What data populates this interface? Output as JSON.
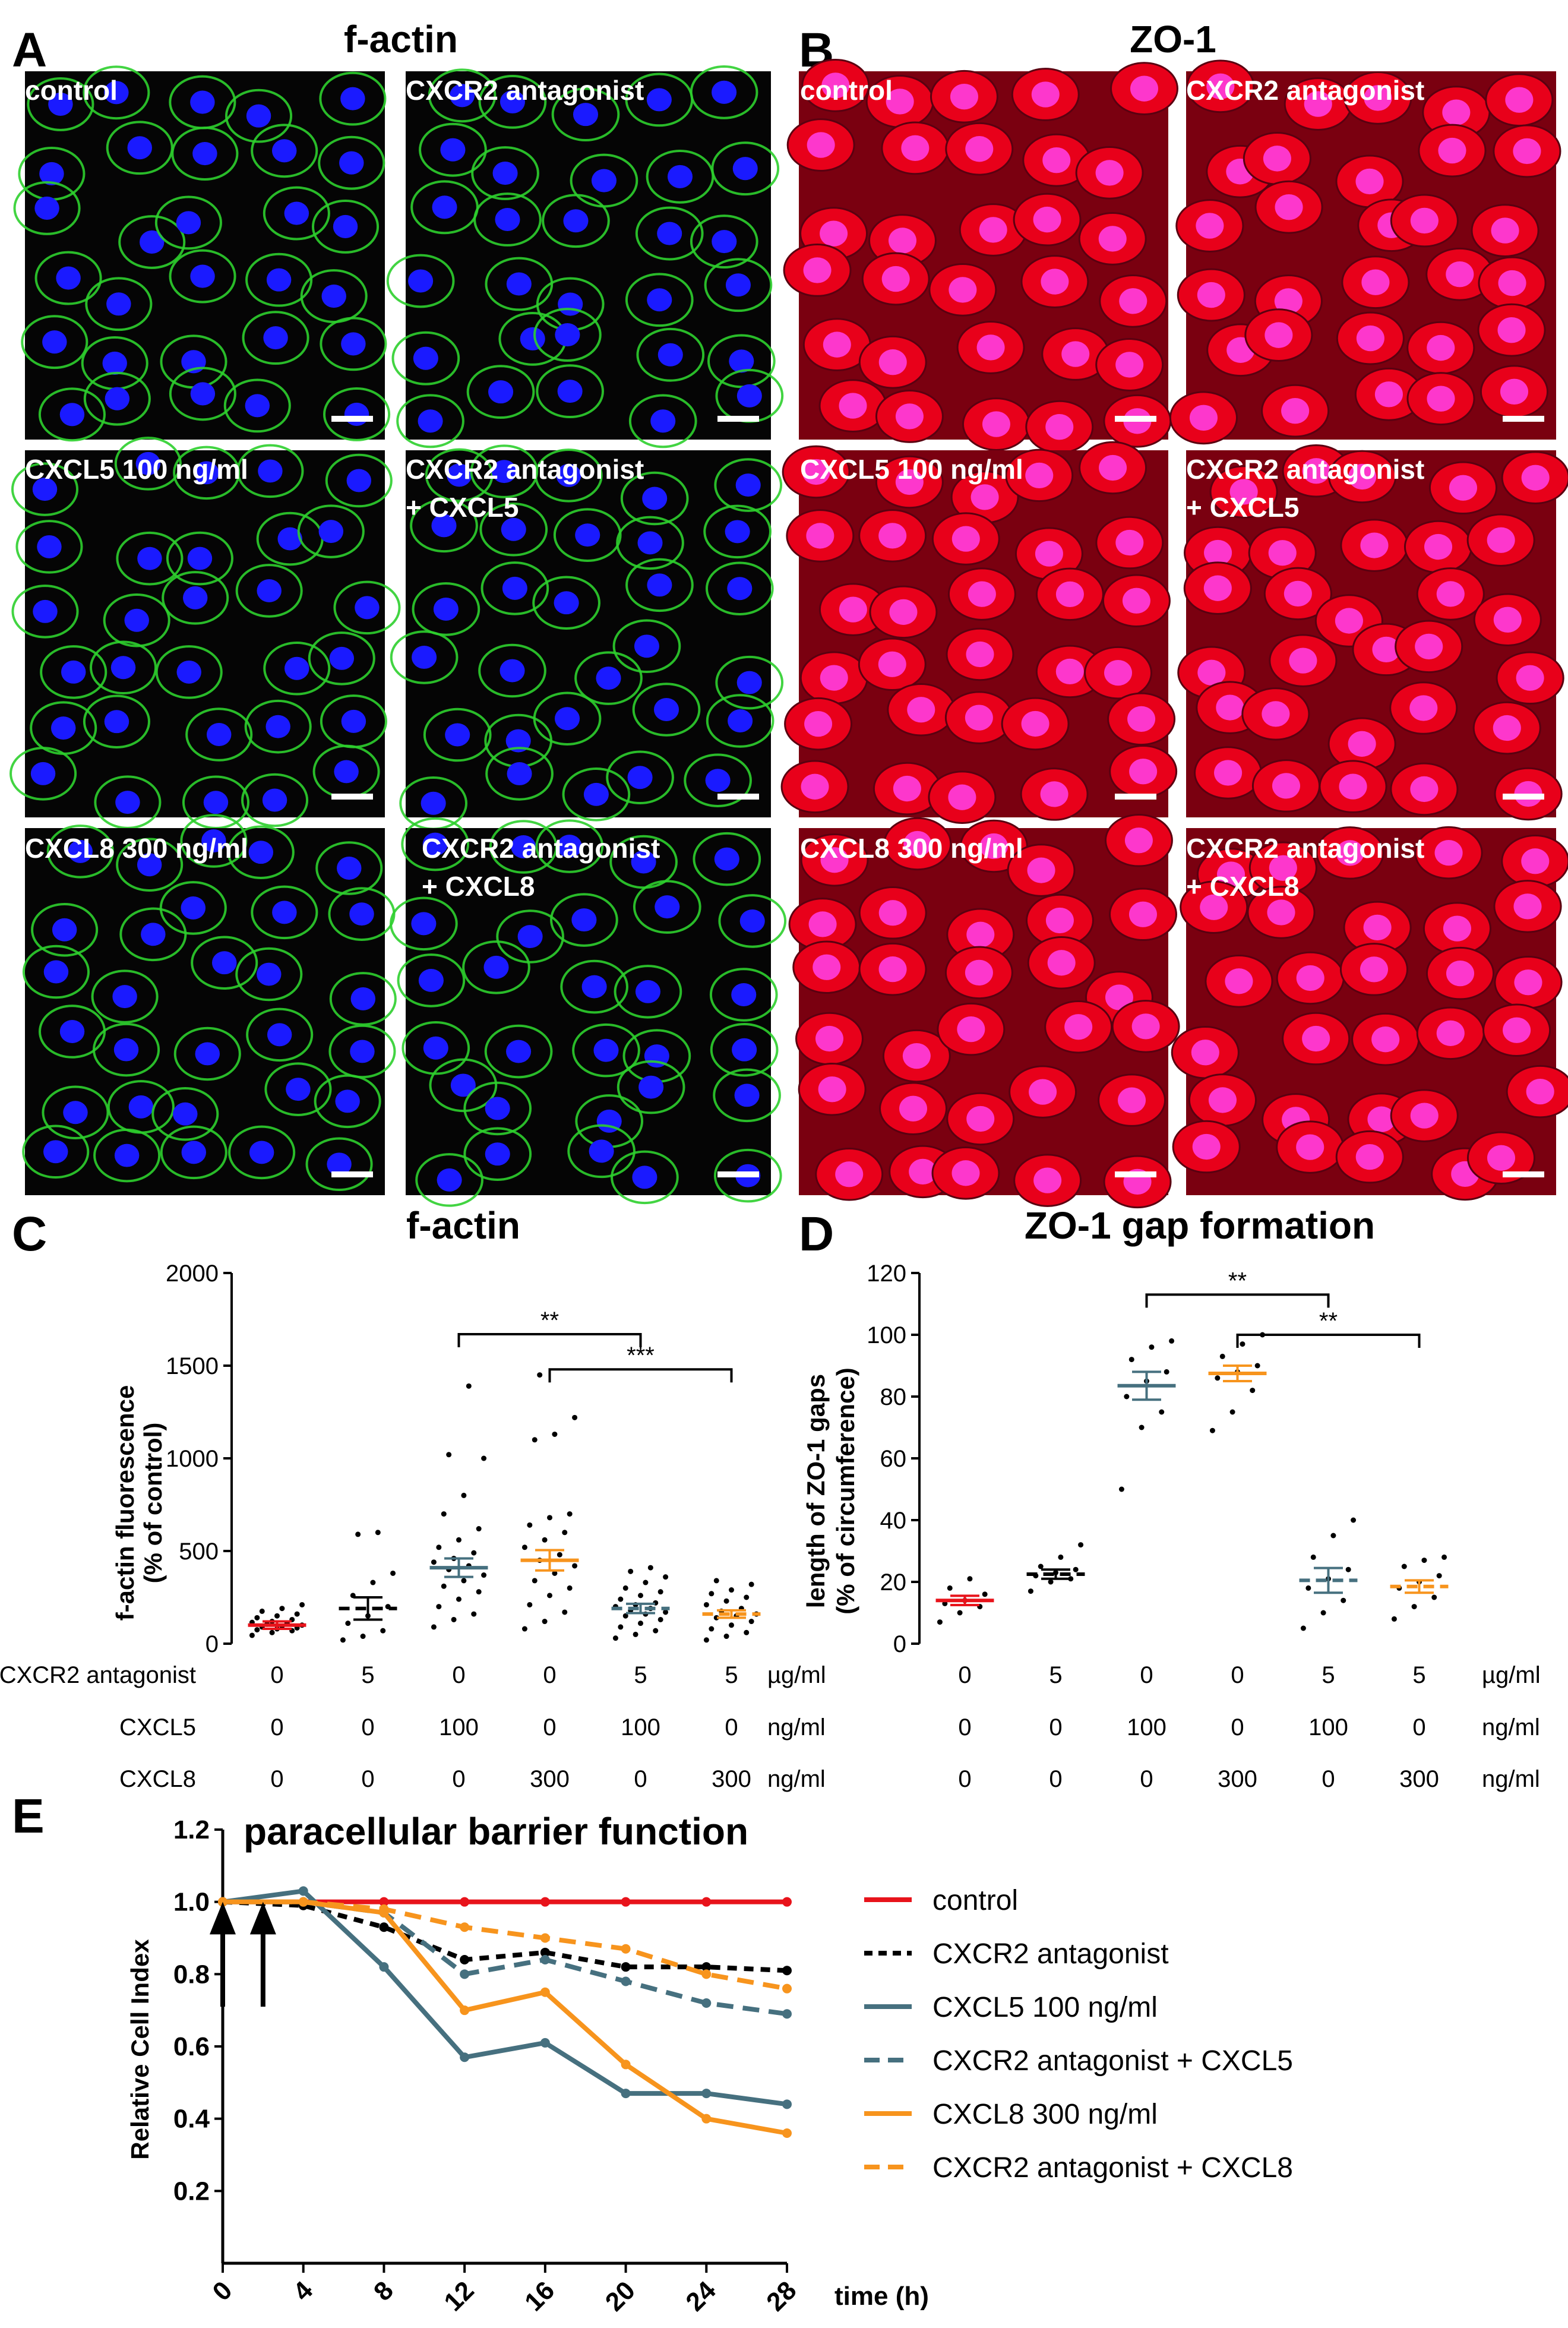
{
  "colors": {
    "control": "#e8131b",
    "antagonist": "#000000",
    "cxcl5": "#46707f",
    "cxcl8": "#f7941d",
    "factin": "#2ecf2e",
    "nuclei": "#1a1aff",
    "zo1": "#e8001a",
    "zo1_nuclei": "#ff3de0"
  },
  "panels": {
    "A": {
      "letter": "A",
      "title": "f-actin"
    },
    "B": {
      "letter": "B",
      "title": "ZO-1"
    },
    "C": {
      "letter": "C"
    },
    "D": {
      "letter": "D"
    },
    "E": {
      "letter": "E"
    }
  },
  "micrographs": {
    "r1": {
      "c1": "control",
      "c2": "CXCR2 antagonist"
    },
    "r2": {
      "c1": "CXCL5 100 ng/ml",
      "c2a": "CXCR2 antagonist",
      "c2b": "+ CXCL5"
    },
    "r3": {
      "c1": "CXCL8 300 ng/ml",
      "c2a": "CXCR2 antagonist",
      "c2b": "+ CXCL8"
    }
  },
  "chart_data": [
    {
      "id": "C",
      "type": "scatter",
      "title": "f-actin",
      "ylabel_line1": "f-actin fluorescence",
      "ylabel_line2": "(% of control)",
      "ylim": [
        0,
        2000
      ],
      "yticks": [
        "0",
        "500",
        "1000",
        "1500",
        "2000"
      ],
      "groups": [
        {
          "mean": 100,
          "sem": 20,
          "color_key": "control",
          "style": "solid",
          "points": [
            45,
            60,
            70,
            75,
            80,
            85,
            90,
            95,
            100,
            105,
            110,
            115,
            120,
            130,
            140,
            150,
            160,
            175,
            190,
            210
          ]
        },
        {
          "mean": 190,
          "sem": 60,
          "color_key": "antagonist",
          "style": "dashed",
          "points": [
            20,
            40,
            70,
            110,
            150,
            200,
            260,
            330,
            380,
            590,
            600
          ]
        },
        {
          "mean": 410,
          "sem": 50,
          "color_key": "cxcl5",
          "style": "solid",
          "points": [
            90,
            130,
            160,
            200,
            240,
            280,
            310,
            340,
            370,
            400,
            420,
            440,
            460,
            490,
            520,
            560,
            620,
            700,
            800,
            1000,
            1020,
            1390
          ]
        },
        {
          "mean": 450,
          "sem": 55,
          "color_key": "cxcl8",
          "style": "solid",
          "points": [
            80,
            120,
            170,
            210,
            260,
            300,
            340,
            380,
            420,
            450,
            480,
            520,
            560,
            600,
            640,
            680,
            700,
            1100,
            1130,
            1220,
            1450
          ]
        },
        {
          "mean": 190,
          "sem": 25,
          "color_key": "cxcl5",
          "style": "dashed",
          "points": [
            30,
            50,
            70,
            90,
            110,
            130,
            150,
            160,
            170,
            180,
            190,
            200,
            210,
            220,
            240,
            260,
            280,
            300,
            330,
            360,
            390,
            410
          ]
        },
        {
          "mean": 160,
          "sem": 20,
          "color_key": "cxcl8",
          "style": "dashed",
          "points": [
            20,
            40,
            60,
            80,
            100,
            120,
            140,
            150,
            160,
            175,
            190,
            210,
            230,
            250,
            270,
            290,
            320,
            340
          ]
        }
      ],
      "significance": [
        {
          "from": 2,
          "to": 4,
          "label": "**",
          "y": 1670
        },
        {
          "from": 3,
          "to": 5,
          "label": "***",
          "y": 1480
        }
      ],
      "conditions": {
        "antagonist": {
          "label": "CXCR2 antagonist",
          "values": [
            "0",
            "5",
            "0",
            "0",
            "5",
            "5"
          ],
          "unit": "µg/ml"
        },
        "cxcl5": {
          "label": "CXCL5",
          "values": [
            "0",
            "0",
            "100",
            "0",
            "100",
            "0"
          ],
          "unit": "ng/ml"
        },
        "cxcl8": {
          "label": "CXCL8",
          "values": [
            "0",
            "0",
            "0",
            "300",
            "0",
            "300"
          ],
          "unit": "ng/ml"
        }
      }
    },
    {
      "id": "D",
      "type": "scatter",
      "title": "ZO-1 gap formation",
      "ylabel_line1": "length of ZO-1 gaps",
      "ylabel_line2": "(% of circumference)",
      "ylim": [
        0,
        120
      ],
      "yticks": [
        "0",
        "20",
        "40",
        "60",
        "80",
        "100",
        "120"
      ],
      "groups": [
        {
          "mean": 14,
          "sem": 1.5,
          "color_key": "control",
          "style": "solid",
          "points": [
            7,
            10,
            12,
            13,
            14,
            16,
            18,
            21
          ]
        },
        {
          "mean": 22.5,
          "sem": 1.5,
          "color_key": "antagonist",
          "style": "dashed",
          "points": [
            17,
            20,
            21,
            22,
            23,
            24,
            25,
            28,
            32
          ]
        },
        {
          "mean": 83.5,
          "sem": 4.5,
          "color_key": "cxcl5",
          "style": "solid",
          "points": [
            50,
            70,
            75,
            80,
            85,
            88,
            92,
            96,
            98
          ]
        },
        {
          "mean": 87.5,
          "sem": 2.5,
          "color_key": "cxcl8",
          "style": "solid",
          "points": [
            69,
            75,
            82,
            86,
            88,
            90,
            93,
            97,
            100
          ]
        },
        {
          "mean": 20.5,
          "sem": 4,
          "color_key": "cxcl5",
          "style": "dashed",
          "points": [
            5,
            10,
            14,
            18,
            21,
            24,
            28,
            35,
            40
          ]
        },
        {
          "mean": 18.5,
          "sem": 2,
          "color_key": "cxcl8",
          "style": "dashed",
          "points": [
            8,
            12,
            15,
            18,
            20,
            22,
            25,
            27,
            28
          ]
        }
      ],
      "significance": [
        {
          "from": 2,
          "to": 4,
          "label": "**",
          "y": 113
        },
        {
          "from": 3,
          "to": 5,
          "label": "**",
          "y": 100
        }
      ],
      "conditions": {
        "antagonist": {
          "values": [
            "0",
            "5",
            "0",
            "0",
            "5",
            "5"
          ],
          "unit": "µg/ml"
        },
        "cxcl5": {
          "values": [
            "0",
            "0",
            "100",
            "0",
            "100",
            "0"
          ],
          "unit": "ng/ml"
        },
        "cxcl8": {
          "values": [
            "0",
            "0",
            "0",
            "300",
            "0",
            "300"
          ],
          "unit": "ng/ml"
        }
      }
    },
    {
      "id": "E",
      "type": "line",
      "title": "paracellular barrier function",
      "xlabel": "time (h)",
      "ylabel": "Relative Cell Index",
      "x": [
        0,
        4,
        8,
        12,
        16,
        20,
        24,
        28
      ],
      "xticks": [
        "0",
        "4",
        "8",
        "12",
        "16",
        "20",
        "24",
        "28"
      ],
      "ylim": [
        0.0,
        1.2
      ],
      "yticks": [
        "0.2",
        "0.4",
        "0.6",
        "0.8",
        "1.0",
        "1.2"
      ],
      "arrows_at_h": [
        0,
        2
      ],
      "series": [
        {
          "name": "control",
          "color_key": "control",
          "style": "solid",
          "values": [
            1.0,
            1.0,
            1.0,
            1.0,
            1.0,
            1.0,
            1.0,
            1.0
          ]
        },
        {
          "name": "CXCR2 antagonist",
          "color_key": "antagonist",
          "style": "dotted",
          "values": [
            1.0,
            0.99,
            0.93,
            0.84,
            0.86,
            0.82,
            0.82,
            0.81
          ]
        },
        {
          "name": "CXCL5 100 ng/ml",
          "color_key": "cxcl5",
          "style": "solid",
          "values": [
            1.0,
            1.03,
            0.82,
            0.57,
            0.61,
            0.47,
            0.47,
            0.44
          ]
        },
        {
          "name": "CXCR2 antagonist + CXCL5",
          "color_key": "cxcl5",
          "style": "dashed",
          "values": [
            1.0,
            1.0,
            0.97,
            0.8,
            0.84,
            0.78,
            0.72,
            0.69
          ]
        },
        {
          "name": "CXCL8 300 ng/ml",
          "color_key": "cxcl8",
          "style": "solid",
          "values": [
            1.0,
            1.0,
            0.97,
            0.7,
            0.75,
            0.55,
            0.4,
            0.36
          ]
        },
        {
          "name": "CXCR2 antagonist + CXCL8",
          "color_key": "cxcl8",
          "style": "dashed",
          "values": [
            1.0,
            1.0,
            0.98,
            0.93,
            0.9,
            0.87,
            0.8,
            0.76
          ]
        }
      ]
    }
  ]
}
